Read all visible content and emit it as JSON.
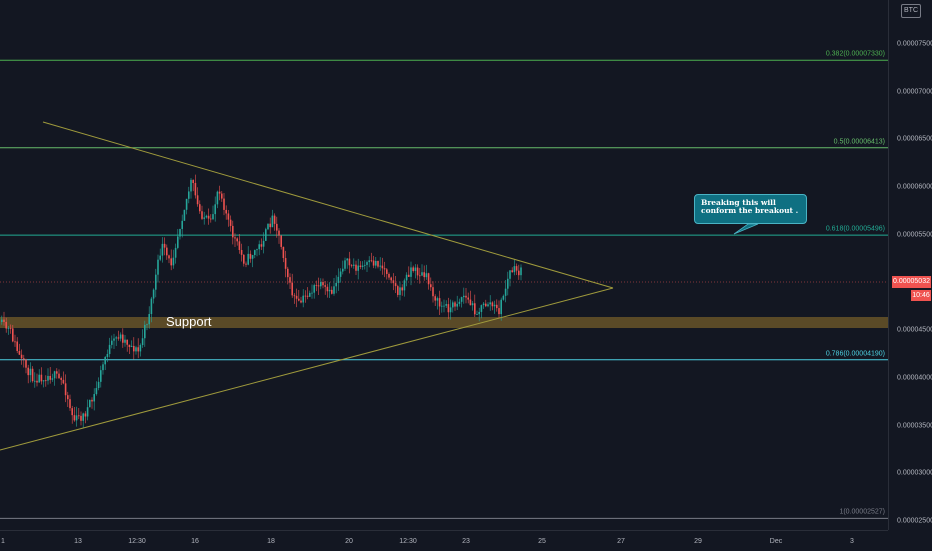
{
  "currency": "BTC",
  "price_axis": {
    "labels": [
      "0.00007500",
      "0.00007000",
      "0.00006500",
      "0.00006000",
      "0.00005500",
      "0.00004500",
      "0.00004000",
      "0.00003500",
      "0.00003000",
      "0.00002500"
    ],
    "values": [
      7.5e-05,
      7e-05,
      6.5e-05,
      6e-05,
      5.5e-05,
      4.5e-05,
      4e-05,
      3.5e-05,
      3e-05,
      2.5e-05
    ]
  },
  "time_axis": {
    "labels": [
      "1",
      "13",
      "12:30",
      "16",
      "18",
      "20",
      "12:30",
      "23",
      "25",
      "27",
      "29",
      "Dec",
      "3"
    ]
  },
  "current_price": "0.00005032",
  "countdown": "10:46",
  "fib_levels": [
    {
      "label": "0.382(0.00007330)",
      "value": 7.33e-05,
      "color": "#4caf50"
    },
    {
      "label": "0.5(0.00006413)",
      "value": 6.413e-05,
      "color": "#66bb6a"
    },
    {
      "label": "0.618(0.00005496)",
      "value": 5.496e-05,
      "color": "#22ab94"
    },
    {
      "label": "0.786(0.00004190)",
      "value": 4.19e-05,
      "color": "#4dd0e1"
    },
    {
      "label": "1(0.00002527)",
      "value": 2.527e-05,
      "color": "#787b86"
    }
  ],
  "support_label": "Support",
  "callout_text": "Breaking this will conform the breakout .",
  "colors": {
    "up": "#26a69a",
    "down": "#ef5350",
    "triangle": "#9f9a3c",
    "support_zone": "#8a6d2c",
    "background": "#131722"
  }
}
